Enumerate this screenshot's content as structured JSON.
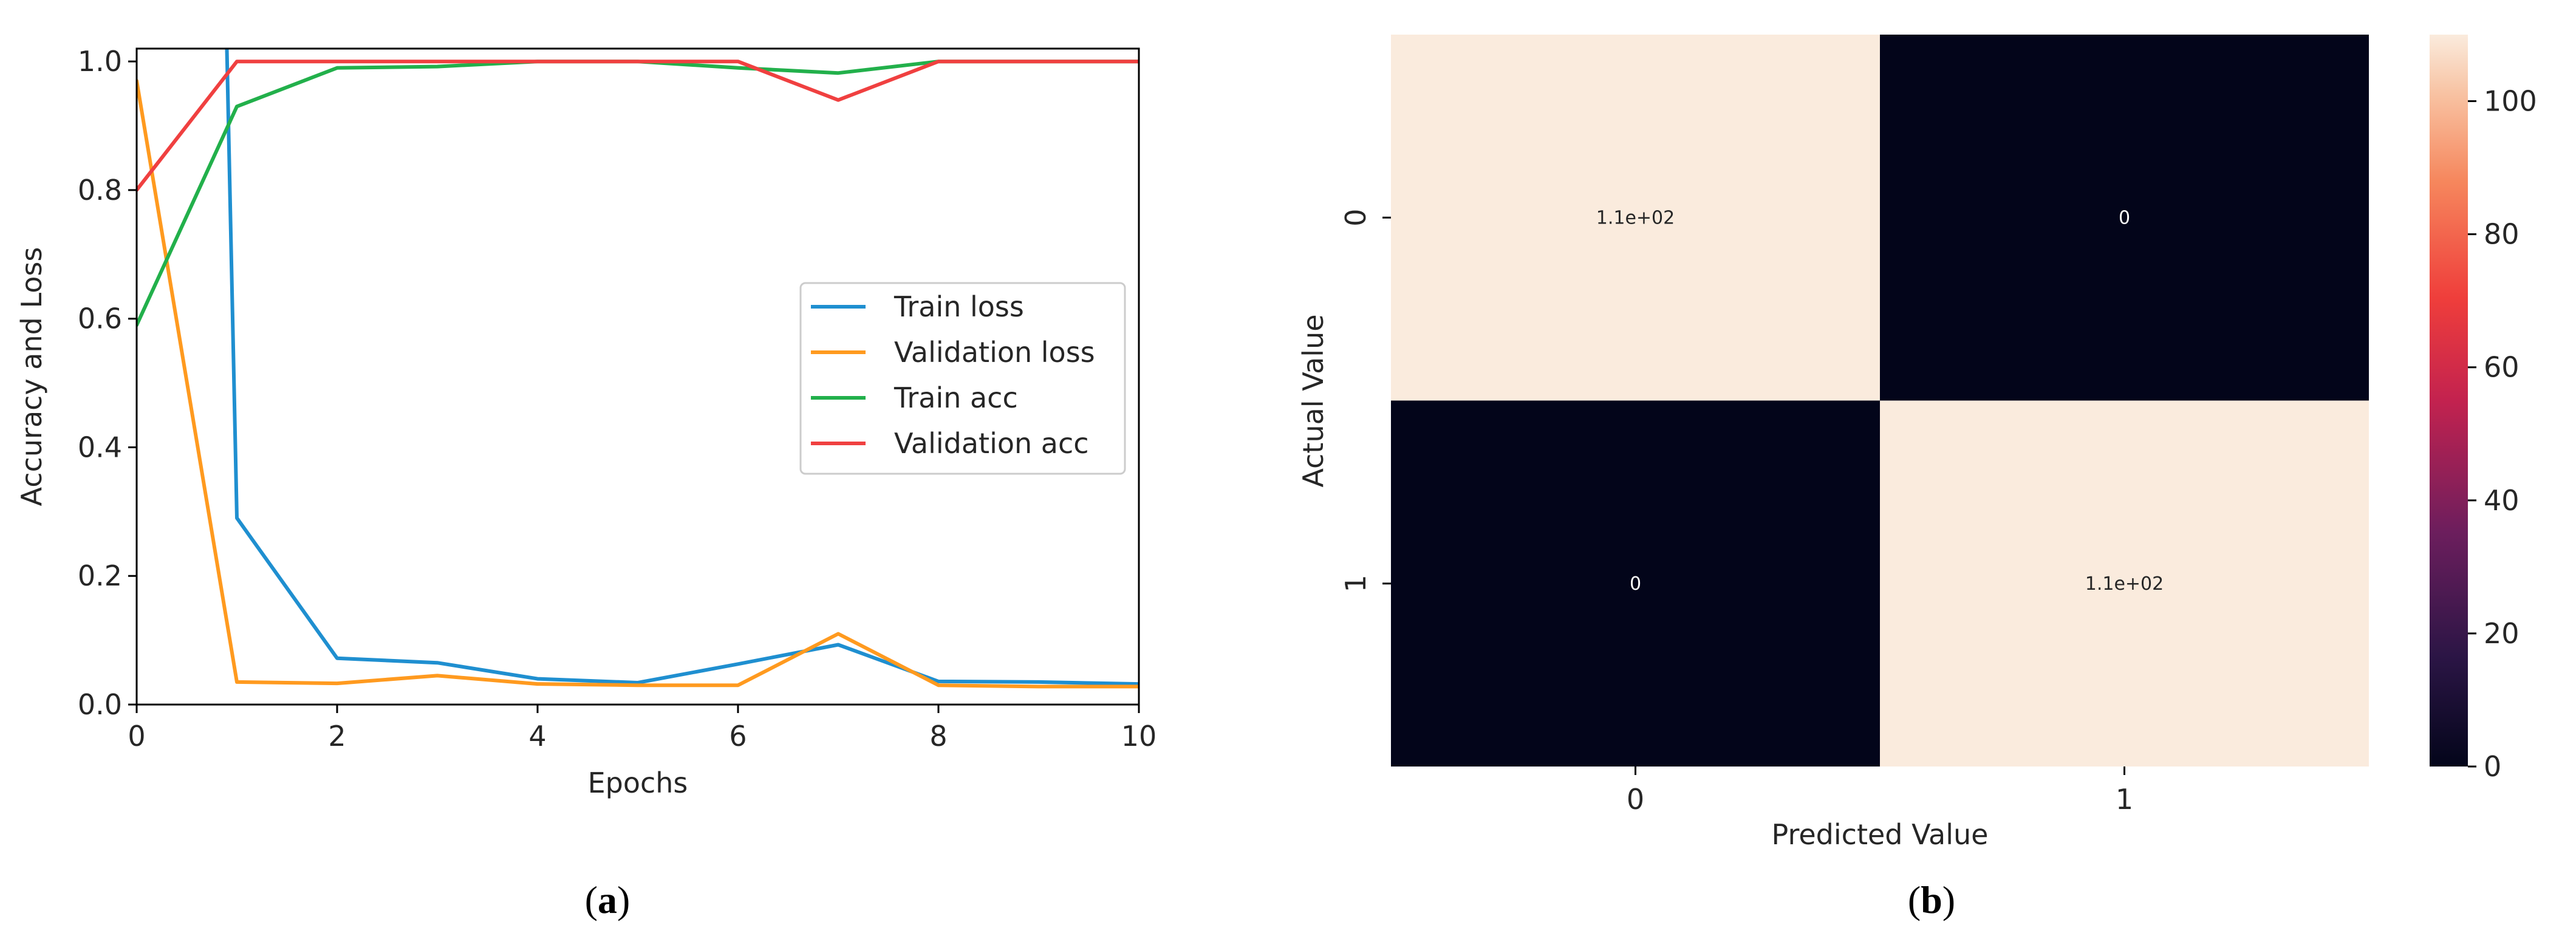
{
  "chart_data": [
    {
      "type": "line",
      "panel": "a",
      "caption": "a",
      "xlabel": "Epochs",
      "ylabel": "Accuracy and Loss",
      "xlim": [
        0,
        10
      ],
      "ylim": [
        0,
        1.02
      ],
      "xticks": [
        "0",
        "2",
        "4",
        "6",
        "8",
        "10"
      ],
      "yticks": [
        "0.0",
        "0.2",
        "0.4",
        "0.6",
        "0.8",
        "1.0"
      ],
      "legend_position": "center-right",
      "series": [
        {
          "name": "Train loss",
          "color": "#1f8fd0",
          "points": [
            [
              0.9,
              1.02
            ],
            [
              1,
              0.29
            ],
            [
              2,
              0.072
            ],
            [
              3,
              0.065
            ],
            [
              4,
              0.04
            ],
            [
              5,
              0.034
            ],
            [
              6,
              0.063
            ],
            [
              7,
              0.093
            ],
            [
              8,
              0.036
            ],
            [
              9,
              0.035
            ],
            [
              10,
              0.032
            ]
          ]
        },
        {
          "name": "Validation loss",
          "color": "#ff9a1f",
          "points": [
            [
              0,
              0.97
            ],
            [
              1,
              0.035
            ],
            [
              2,
              0.033
            ],
            [
              3,
              0.045
            ],
            [
              4,
              0.032
            ],
            [
              5,
              0.03
            ],
            [
              6,
              0.03
            ],
            [
              7,
              0.11
            ],
            [
              8,
              0.03
            ],
            [
              9,
              0.028
            ],
            [
              10,
              0.028
            ]
          ]
        },
        {
          "name": "Train acc",
          "color": "#22b04b",
          "points": [
            [
              0,
              0.59
            ],
            [
              1,
              0.93
            ],
            [
              2,
              0.99
            ],
            [
              3,
              0.992
            ],
            [
              4,
              1.0
            ],
            [
              5,
              1.0
            ],
            [
              6,
              0.99
            ],
            [
              7,
              0.982
            ],
            [
              8,
              1.0
            ],
            [
              9,
              1.0
            ],
            [
              10,
              1.0
            ]
          ]
        },
        {
          "name": "Validation acc",
          "color": "#f04040",
          "points": [
            [
              0,
              0.8
            ],
            [
              1,
              1.0
            ],
            [
              2,
              1.0
            ],
            [
              3,
              1.0
            ],
            [
              4,
              1.0
            ],
            [
              5,
              1.0
            ],
            [
              6,
              1.0
            ],
            [
              7,
              0.94
            ],
            [
              8,
              1.0
            ],
            [
              9,
              1.0
            ],
            [
              10,
              1.0
            ]
          ]
        }
      ]
    },
    {
      "type": "heatmap",
      "panel": "b",
      "caption": "b",
      "xlabel": "Predicted Value",
      "ylabel": "Actual Value",
      "x_categories": [
        "0",
        "1"
      ],
      "y_categories": [
        "0",
        "1"
      ],
      "values": [
        [
          110,
          0
        ],
        [
          0,
          110
        ]
      ],
      "annotations": [
        [
          "1.1e+02",
          "0"
        ],
        [
          "0",
          "1.1e+02"
        ]
      ],
      "colorbar": {
        "min": 0,
        "max": 110,
        "ticks": [
          "0",
          "20",
          "40",
          "60",
          "80",
          "100"
        ]
      }
    }
  ]
}
